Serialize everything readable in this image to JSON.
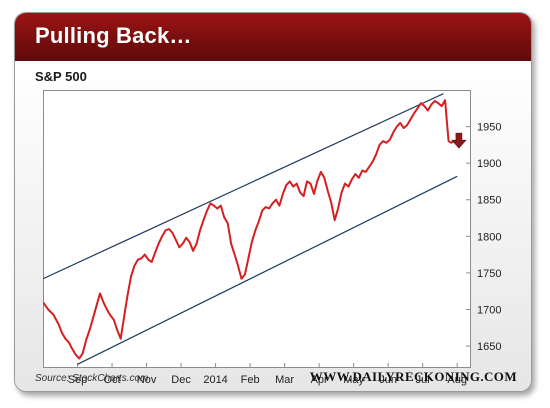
{
  "header": {
    "title": "Pulling Back…"
  },
  "footer": {
    "source": "Source: StockCharts.com",
    "site": "WWW.DAILYRECKONING.COM"
  },
  "colors": {
    "header_top": "#9c1414",
    "header_bottom": "#5e0a0a",
    "price_line": "#d42020",
    "channel_lines": "#1f3a5a",
    "arrow": "#8b1a1a"
  },
  "chart_data": {
    "type": "line",
    "title": "S&P 500",
    "xlabel": "",
    "ylabel": "",
    "y_axis_side": "right",
    "ylim": [
      1620,
      2000
    ],
    "yticks": [
      1650,
      1700,
      1750,
      1800,
      1850,
      1900,
      1950
    ],
    "x_ticks": [
      "Sep",
      "Oct",
      "Nov",
      "Dec",
      "2014",
      "Feb",
      "Mar",
      "Apr",
      "May",
      "Jun",
      "Jul",
      "Aug"
    ],
    "x_tick_positions": [
      1.0,
      2.0,
      3.0,
      4.0,
      5.0,
      6.0,
      7.0,
      8.0,
      9.0,
      10.0,
      11.0,
      12.0
    ],
    "xlim": [
      0.0,
      12.4
    ],
    "grid": false,
    "series": [
      {
        "values": [
          [
            0.0,
            1710
          ],
          [
            0.15,
            1700
          ],
          [
            0.3,
            1693
          ],
          [
            0.45,
            1680
          ],
          [
            0.55,
            1668
          ],
          [
            0.65,
            1660
          ],
          [
            0.75,
            1655
          ],
          [
            0.85,
            1646
          ],
          [
            0.95,
            1638
          ],
          [
            1.05,
            1633
          ],
          [
            1.15,
            1640
          ],
          [
            1.25,
            1658
          ],
          [
            1.35,
            1672
          ],
          [
            1.45,
            1688
          ],
          [
            1.55,
            1705
          ],
          [
            1.65,
            1722
          ],
          [
            1.75,
            1710
          ],
          [
            1.85,
            1700
          ],
          [
            1.95,
            1692
          ],
          [
            2.05,
            1686
          ],
          [
            2.15,
            1672
          ],
          [
            2.25,
            1660
          ],
          [
            2.35,
            1690
          ],
          [
            2.45,
            1720
          ],
          [
            2.55,
            1745
          ],
          [
            2.65,
            1760
          ],
          [
            2.75,
            1768
          ],
          [
            2.85,
            1770
          ],
          [
            2.95,
            1775
          ],
          [
            3.05,
            1768
          ],
          [
            3.15,
            1765
          ],
          [
            3.25,
            1778
          ],
          [
            3.35,
            1790
          ],
          [
            3.45,
            1800
          ],
          [
            3.55,
            1808
          ],
          [
            3.65,
            1810
          ],
          [
            3.75,
            1805
          ],
          [
            3.85,
            1795
          ],
          [
            3.95,
            1785
          ],
          [
            4.05,
            1790
          ],
          [
            4.15,
            1798
          ],
          [
            4.25,
            1792
          ],
          [
            4.35,
            1780
          ],
          [
            4.45,
            1790
          ],
          [
            4.55,
            1808
          ],
          [
            4.65,
            1822
          ],
          [
            4.75,
            1835
          ],
          [
            4.85,
            1845
          ],
          [
            4.95,
            1842
          ],
          [
            5.05,
            1838
          ],
          [
            5.15,
            1842
          ],
          [
            5.25,
            1826
          ],
          [
            5.35,
            1818
          ],
          [
            5.45,
            1790
          ],
          [
            5.55,
            1775
          ],
          [
            5.65,
            1760
          ],
          [
            5.75,
            1742
          ],
          [
            5.85,
            1748
          ],
          [
            5.95,
            1770
          ],
          [
            6.05,
            1792
          ],
          [
            6.15,
            1808
          ],
          [
            6.25,
            1820
          ],
          [
            6.35,
            1835
          ],
          [
            6.45,
            1840
          ],
          [
            6.55,
            1838
          ],
          [
            6.65,
            1845
          ],
          [
            6.75,
            1850
          ],
          [
            6.85,
            1842
          ],
          [
            6.95,
            1858
          ],
          [
            7.05,
            1870
          ],
          [
            7.15,
            1875
          ],
          [
            7.25,
            1868
          ],
          [
            7.35,
            1872
          ],
          [
            7.45,
            1860
          ],
          [
            7.55,
            1855
          ],
          [
            7.65,
            1875
          ],
          [
            7.75,
            1872
          ],
          [
            7.85,
            1858
          ],
          [
            7.95,
            1876
          ],
          [
            8.05,
            1888
          ],
          [
            8.15,
            1880
          ],
          [
            8.25,
            1862
          ],
          [
            8.35,
            1846
          ],
          [
            8.45,
            1822
          ],
          [
            8.55,
            1838
          ],
          [
            8.65,
            1860
          ],
          [
            8.75,
            1872
          ],
          [
            8.85,
            1868
          ],
          [
            8.95,
            1878
          ],
          [
            9.05,
            1885
          ],
          [
            9.15,
            1880
          ],
          [
            9.25,
            1890
          ],
          [
            9.35,
            1888
          ],
          [
            9.45,
            1895
          ],
          [
            9.55,
            1902
          ],
          [
            9.65,
            1912
          ],
          [
            9.75,
            1925
          ],
          [
            9.85,
            1930
          ],
          [
            9.95,
            1928
          ],
          [
            10.05,
            1932
          ],
          [
            10.15,
            1942
          ],
          [
            10.25,
            1950
          ],
          [
            10.35,
            1955
          ],
          [
            10.45,
            1948
          ],
          [
            10.55,
            1952
          ],
          [
            10.65,
            1960
          ],
          [
            10.75,
            1968
          ],
          [
            10.85,
            1975
          ],
          [
            10.95,
            1982
          ],
          [
            11.05,
            1978
          ],
          [
            11.15,
            1972
          ],
          [
            11.25,
            1980
          ],
          [
            11.35,
            1985
          ],
          [
            11.45,
            1982
          ],
          [
            11.55,
            1978
          ],
          [
            11.65,
            1986
          ],
          [
            11.7,
            1958
          ],
          [
            11.75,
            1930
          ],
          [
            11.82,
            1928
          ],
          [
            11.9,
            1930
          ]
        ]
      }
    ],
    "trend_lines": [
      {
        "from": [
          0.0,
          1742
        ],
        "to": [
          11.6,
          1995
        ]
      },
      {
        "from": [
          1.0,
          1625
        ],
        "to": [
          12.0,
          1882
        ]
      }
    ],
    "annotations": [
      {
        "type": "down-arrow",
        "x": 12.05,
        "y": 1930
      }
    ]
  }
}
